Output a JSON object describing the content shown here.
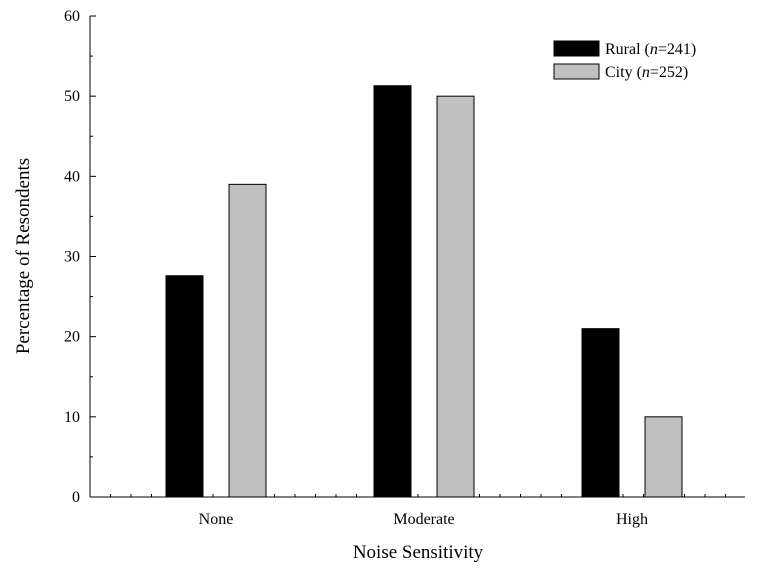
{
  "chart_data": {
    "type": "bar",
    "title": "",
    "xlabel": "Noise Sensitivity",
    "ylabel": "Percentage of Resondents",
    "categories": [
      "None",
      "Moderate",
      "High"
    ],
    "ylim": [
      0,
      60
    ],
    "yticks": [
      0,
      10,
      20,
      30,
      40,
      50,
      60
    ],
    "grid": false,
    "legend_position": "top-right",
    "series": [
      {
        "name": "Rural",
        "n_label": "n",
        "n_value": "=241)",
        "color": "#000000",
        "values": [
          27.6,
          51.3,
          21.0
        ]
      },
      {
        "name": "City",
        "n_label": "n",
        "n_value": "=252)",
        "color": "#c0c0c0",
        "values": [
          39.0,
          50.0,
          10.0
        ]
      }
    ]
  }
}
